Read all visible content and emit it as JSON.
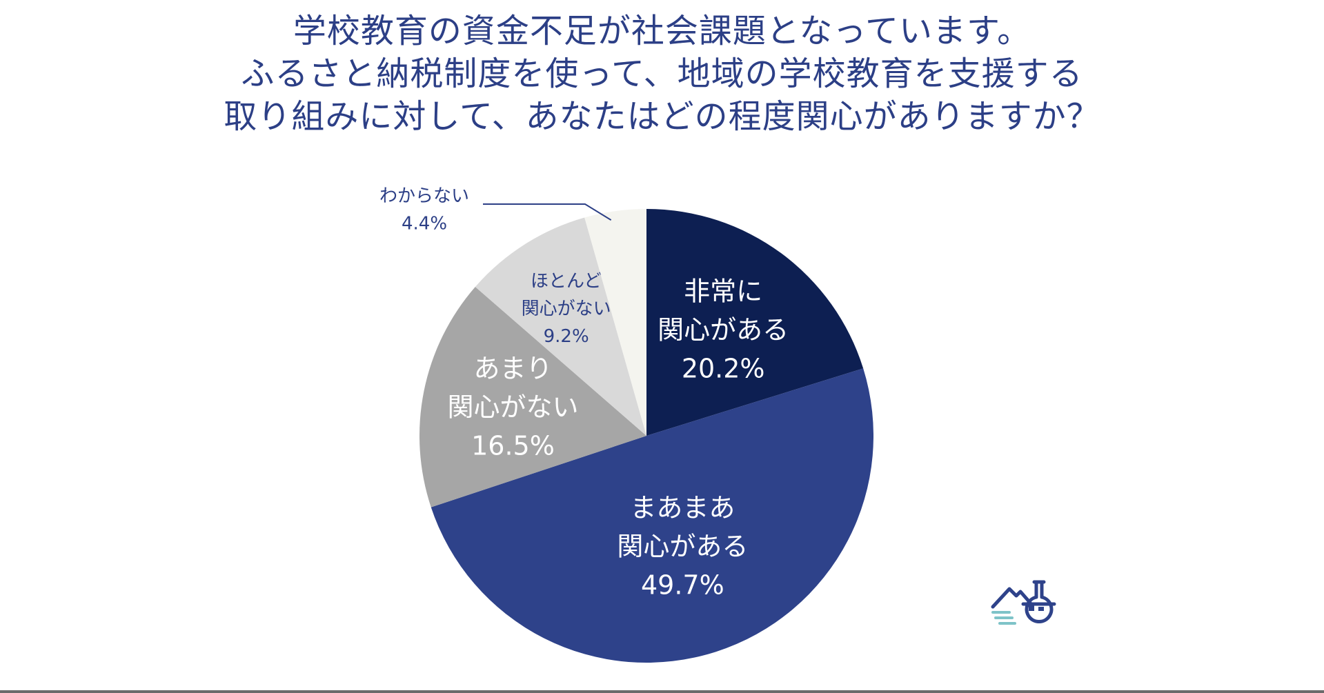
{
  "title_lines": [
    "学校教育の資金不足が社会課題となっています。",
    "ふるさと納税制度を使って、地域の学校教育を支援する",
    "取り組みに対して、あなたはどの程度関心がありますか？"
  ],
  "colors": {
    "title": "#2c3f86",
    "outside_label": "#2c3f86"
  },
  "logo": {
    "icon": "flask-mountain-icon"
  },
  "chart_data": {
    "type": "pie",
    "start": "12 o'clock",
    "direction": "clockwise",
    "unit": "%",
    "slices": [
      {
        "label_lines": [
          "非常に",
          "関心がある"
        ],
        "value": 20.2,
        "value_text": "20.2%",
        "color": "#0d1f52",
        "label_color": "#ffffff"
      },
      {
        "label_lines": [
          "まあまあ",
          "関心がある"
        ],
        "value": 49.7,
        "value_text": "49.7%",
        "color": "#2e428a",
        "label_color": "#ffffff"
      },
      {
        "label_lines": [
          "あまり",
          "関心がない"
        ],
        "value": 16.5,
        "value_text": "16.5%",
        "color": "#a6a6a6",
        "label_color": "#ffffff"
      },
      {
        "label_lines": [
          "ほとんど",
          "関心がない"
        ],
        "value": 9.2,
        "value_text": "9.2%",
        "color": "#d9d9d9",
        "label_color": "#2c3f86"
      },
      {
        "label_lines": [
          "わからない"
        ],
        "value": 4.4,
        "value_text": "4.4%",
        "color": "#f4f4ef",
        "label_color": "#2c3f86",
        "label_outside": true
      }
    ]
  }
}
